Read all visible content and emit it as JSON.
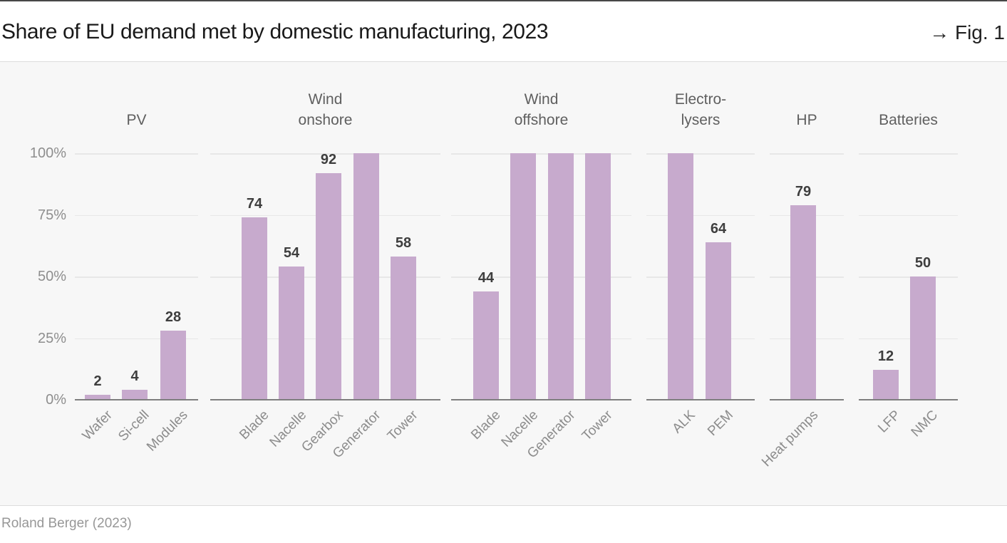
{
  "header": {
    "figure_label": "→ Fig. 1"
  },
  "footer": {
    "source": "Roland Berger (2023)"
  },
  "chart_data": {
    "type": "bar",
    "title": "Share of EU demand met by domestic manufacturing, 2023",
    "year": "2023",
    "unit": "%",
    "ylim": [
      0,
      100
    ],
    "yticks": [
      "0%",
      "25%",
      "50%",
      "75%",
      "100%"
    ],
    "grid": true,
    "legend": "none",
    "bar_color": "#c7aacd",
    "background_color": "#f7f7f7",
    "groups": [
      {
        "label": "PV",
        "label_lines": [
          "PV"
        ],
        "bars": [
          {
            "label": "Wafer",
            "value": 2
          },
          {
            "label": "Si-cell",
            "value": 4
          },
          {
            "label": "Modules",
            "value": 28
          }
        ]
      },
      {
        "label": "Wind onshore",
        "label_lines": [
          "Wind",
          "onshore"
        ],
        "bars": [
          {
            "label": "Blade",
            "value": 74
          },
          {
            "label": "Nacelle",
            "value": 54
          },
          {
            "label": "Gearbox",
            "value": 92
          },
          {
            "label": "Generator",
            "value": 100,
            "show_value": false
          },
          {
            "label": "Tower",
            "value": 58
          }
        ]
      },
      {
        "label": "Wind offshore",
        "label_lines": [
          "Wind",
          "offshore"
        ],
        "bars": [
          {
            "label": "Blade",
            "value": 44
          },
          {
            "label": "Nacelle",
            "value": 100,
            "show_value": false
          },
          {
            "label": "Generator",
            "value": 100,
            "show_value": false
          },
          {
            "label": "Tower",
            "value": 100,
            "show_value": false
          }
        ]
      },
      {
        "label": "Electrolysers",
        "label_lines": [
          "Electro-",
          "lysers"
        ],
        "bars": [
          {
            "label": "ALK",
            "value": 100,
            "show_value": false
          },
          {
            "label": "PEM",
            "value": 64
          }
        ]
      },
      {
        "label": "HP",
        "label_lines": [
          "HP"
        ],
        "bars": [
          {
            "label": "Heat pumps",
            "value": 79
          }
        ]
      },
      {
        "label": "Batteries",
        "label_lines": [
          "LFP",
          "NMC"
        ],
        "header_lines": [
          "Batteries"
        ],
        "bars": [
          {
            "label": "LFP",
            "value": 12
          },
          {
            "label": "NMC",
            "value": 50
          }
        ]
      }
    ]
  }
}
